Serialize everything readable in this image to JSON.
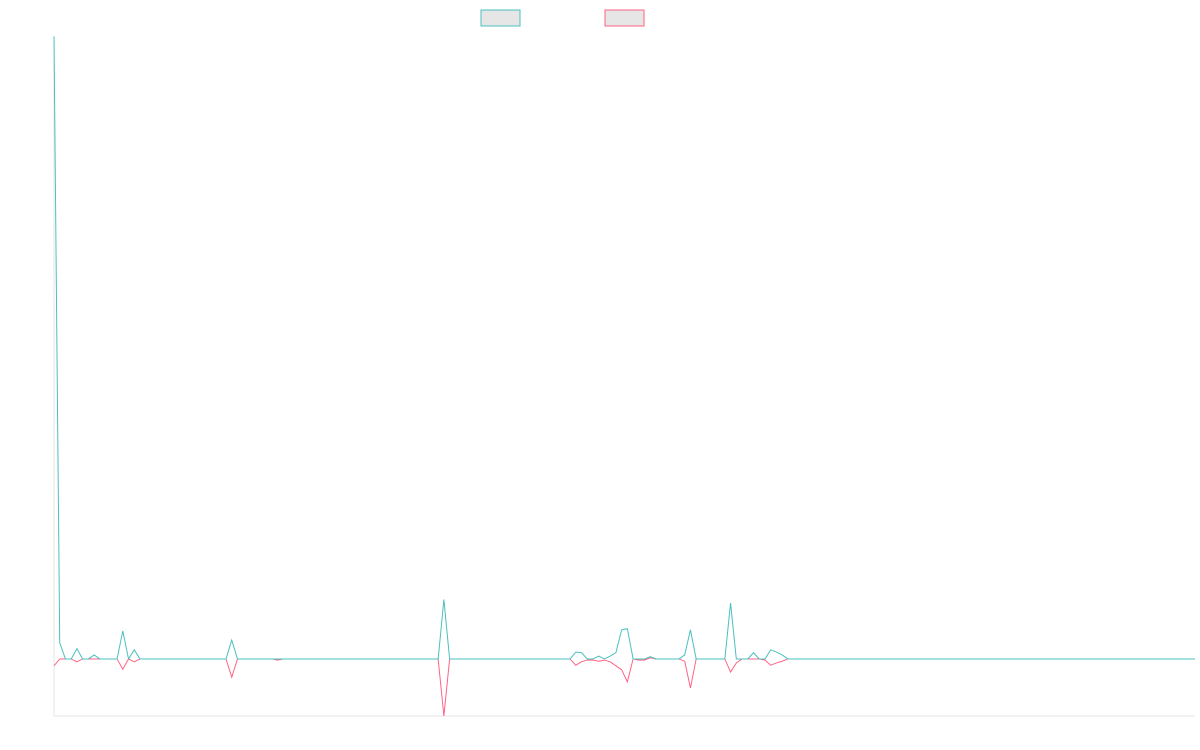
{
  "chart_data": {
    "type": "line",
    "categories": [
      null,
      null,
      null,
      null,
      null,
      null,
      null,
      null,
      null,
      null,
      null,
      null,
      null,
      null,
      null,
      null,
      null,
      null,
      null,
      null,
      null,
      null,
      null,
      null,
      null,
      null,
      null,
      null,
      null,
      null,
      null,
      null,
      null,
      null,
      null,
      null,
      null,
      null,
      null,
      null,
      null,
      null,
      null,
      null,
      null,
      null,
      null,
      null,
      null,
      null,
      null,
      null,
      null,
      null,
      null,
      null,
      null,
      null,
      null,
      null,
      null,
      null,
      null,
      null,
      null,
      null,
      null,
      null,
      null,
      null,
      null,
      null,
      null,
      null,
      null,
      null,
      null,
      null,
      null,
      null,
      null,
      null,
      null,
      null,
      null,
      null,
      null,
      null,
      null,
      null,
      null,
      null,
      null,
      null,
      null,
      null,
      null,
      null,
      null,
      null,
      null,
      null,
      null,
      null,
      null,
      null,
      null,
      null,
      null,
      null,
      null,
      null,
      null,
      null,
      null,
      null,
      null,
      null,
      null,
      null,
      null,
      null,
      null,
      null,
      null,
      null,
      null,
      null,
      null,
      null,
      null,
      null,
      null,
      null,
      null,
      null,
      null,
      null,
      null,
      null,
      null,
      null,
      null,
      null,
      null,
      null,
      null,
      null,
      null,
      null,
      null,
      null,
      null,
      null,
      null,
      null,
      null,
      null,
      null,
      null,
      null,
      null,
      null,
      null,
      null,
      null,
      null,
      null,
      null,
      null,
      null,
      null,
      null,
      null,
      null,
      null,
      null,
      null,
      null,
      null,
      null,
      null,
      null,
      null,
      null,
      null,
      null,
      null,
      null,
      null,
      null,
      null,
      null,
      null,
      null,
      null,
      null,
      null,
      null,
      null
    ],
    "series": [
      {
        "color": "#4bc0c0",
        "values": [
          10.91,
          0.28,
          0,
          0,
          0.18,
          0,
          0,
          0.07,
          0,
          0,
          0,
          0,
          0.49,
          0,
          0.16,
          0,
          0,
          0,
          0,
          0,
          0,
          0,
          0,
          0,
          0,
          0,
          0,
          0,
          0,
          0,
          0,
          0.33,
          0,
          0,
          0,
          0,
          0,
          0,
          0,
          0,
          0,
          0,
          0,
          0,
          0,
          0,
          0,
          0,
          0,
          0,
          0,
          0,
          0,
          0,
          0,
          0,
          0,
          0,
          0,
          0,
          0,
          0,
          0,
          0,
          0,
          0,
          0,
          0,
          1.04,
          0,
          0,
          0,
          0,
          0,
          0,
          0,
          0,
          0,
          0,
          0,
          0,
          0,
          0,
          0,
          0,
          0,
          0,
          0,
          0,
          0,
          0,
          0.12,
          0.11,
          0,
          0,
          0.05,
          0,
          0.05,
          0.11,
          0.51,
          0.53,
          0,
          0,
          0,
          0.04,
          0,
          0,
          0,
          0,
          0,
          0.07,
          0.51,
          0,
          0,
          0,
          0,
          0,
          0,
          0.98,
          0,
          0,
          0,
          0.11,
          0,
          0,
          0.16,
          0.12,
          0.07,
          0,
          0,
          0,
          0,
          0,
          0,
          0,
          0,
          0,
          0,
          0,
          0,
          0,
          0,
          0,
          0,
          0,
          0,
          0,
          0,
          0,
          0,
          0,
          0,
          0,
          0,
          0,
          0,
          0,
          0,
          0,
          0,
          0,
          0,
          0,
          0,
          0,
          0,
          0,
          0,
          0,
          0,
          0,
          0,
          0,
          0,
          0,
          0,
          0,
          0,
          0,
          0,
          0,
          0,
          0,
          0,
          0,
          0,
          0,
          0,
          0,
          0,
          0,
          0,
          0,
          0,
          0,
          0,
          0,
          0,
          0,
          0
        ]
      },
      {
        "color": "#ff6384",
        "values": [
          -0.12,
          0,
          0,
          0,
          -0.05,
          0,
          0,
          0,
          0,
          0,
          0,
          0,
          -0.18,
          0,
          -0.05,
          0,
          0,
          0,
          0,
          0,
          0,
          0,
          0,
          0,
          0,
          0,
          0,
          0,
          0,
          0,
          0,
          -0.32,
          0,
          0,
          0,
          0,
          0,
          0,
          0,
          -0.02,
          0,
          0,
          0,
          0,
          0,
          0,
          0,
          0,
          0,
          0,
          0,
          0,
          0,
          0,
          0,
          0,
          0,
          0,
          0,
          0,
          0,
          0,
          0,
          0,
          0,
          0,
          0,
          0,
          -1,
          0,
          0,
          0,
          0,
          0,
          0,
          0,
          0,
          0,
          0,
          0,
          0,
          0,
          0,
          0,
          0,
          0,
          0,
          0,
          0,
          0,
          0,
          -0.11,
          -0.05,
          -0.02,
          -0.02,
          -0.04,
          -0.02,
          -0.05,
          -0.12,
          -0.19,
          -0.4,
          0,
          -0.02,
          -0.02,
          0.02,
          0,
          0,
          0,
          0,
          0,
          -0.04,
          -0.51,
          0,
          0,
          0,
          0,
          0,
          0,
          -0.23,
          -0.07,
          0,
          0,
          0,
          0,
          -0.02,
          -0.11,
          -0.07,
          -0.04,
          0,
          0,
          0,
          0,
          0,
          0,
          0,
          0,
          0,
          0,
          0,
          0,
          0,
          0,
          0,
          0,
          0,
          0,
          0,
          0,
          0,
          0,
          0,
          0,
          0,
          0,
          0,
          0,
          0,
          0,
          0,
          0,
          0,
          0,
          0,
          0,
          0,
          0,
          0,
          0,
          0,
          0,
          0,
          0,
          0,
          0,
          0,
          0,
          0,
          0,
          0,
          0,
          0,
          0,
          0,
          0,
          0,
          0,
          0,
          0,
          0,
          0,
          0,
          0,
          0,
          0,
          0,
          0,
          0,
          0,
          0,
          0
        ]
      }
    ],
    "ylim": [
      -1,
      10.9
    ]
  }
}
